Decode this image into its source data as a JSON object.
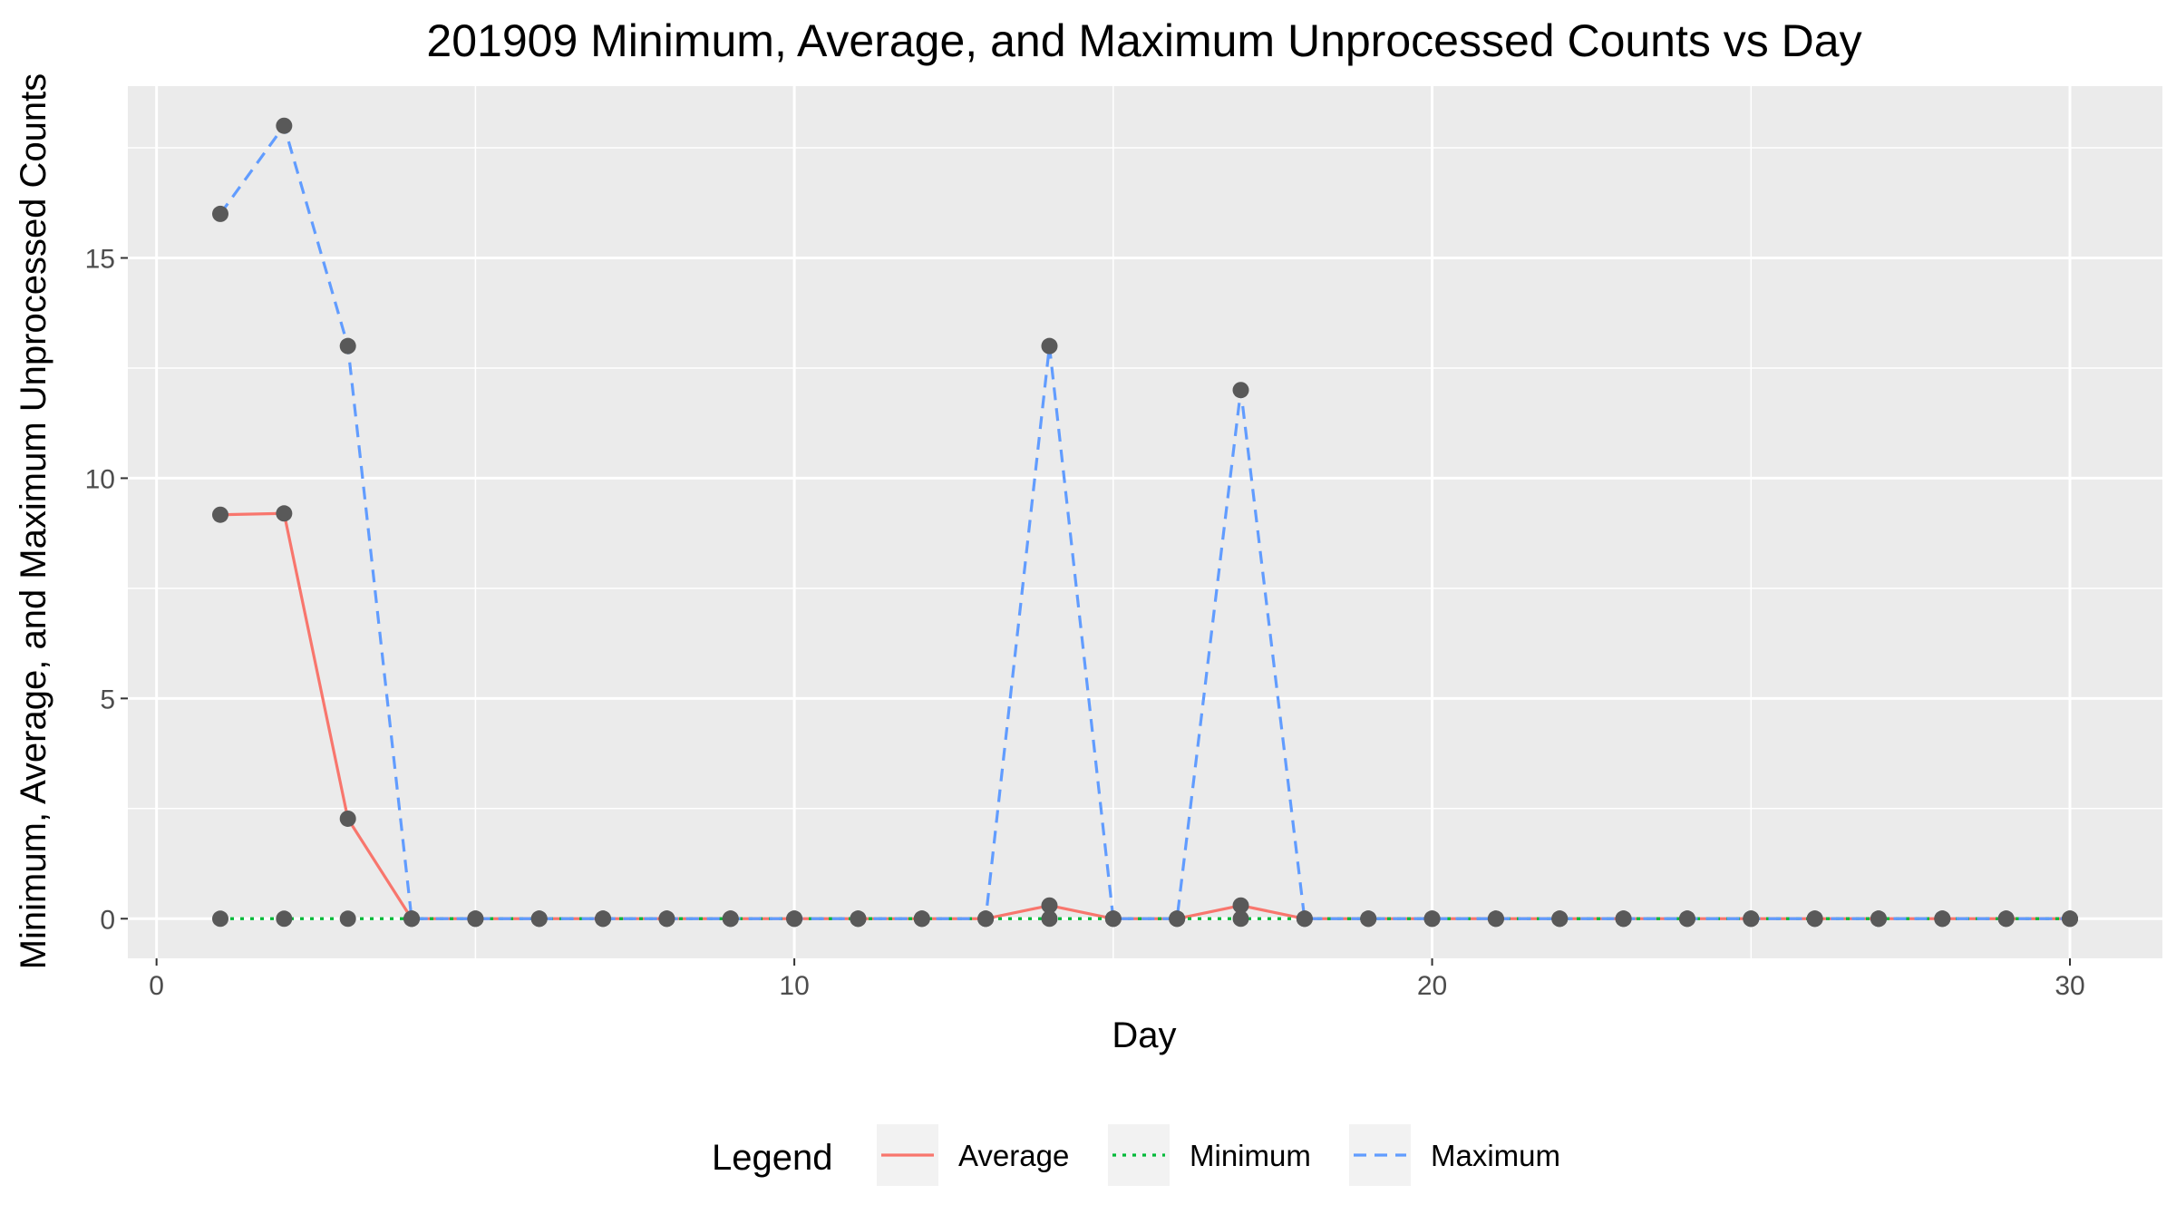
{
  "chart_data": {
    "type": "line",
    "title": "201909 Minimum, Average, and Maximum Unprocessed Counts vs Day",
    "xlabel": "Day",
    "ylabel": "Minimum, Average, and Maximum Unprocessed Counts",
    "xlim": [
      -0.45,
      31.45
    ],
    "ylim": [
      -0.9,
      18.9
    ],
    "x_ticks": [
      0,
      10,
      20,
      30
    ],
    "y_ticks": [
      0,
      5,
      10,
      15
    ],
    "grid": true,
    "legend_position": "bottom",
    "legend_title": "Legend",
    "x": [
      1,
      2,
      3,
      4,
      5,
      6,
      7,
      8,
      9,
      10,
      11,
      12,
      13,
      14,
      15,
      16,
      17,
      18,
      19,
      20,
      21,
      22,
      23,
      24,
      25,
      26,
      27,
      28,
      29,
      30
    ],
    "series": [
      {
        "name": "Average",
        "color": "#F8766D",
        "linetype": "solid",
        "values": [
          9.17,
          9.2,
          2.27,
          0,
          0,
          0,
          0,
          0,
          0,
          0,
          0,
          0,
          0,
          0.3,
          0,
          0,
          0.3,
          0,
          0,
          0,
          0,
          0,
          0,
          0,
          0,
          0,
          0,
          0,
          0,
          0
        ]
      },
      {
        "name": "Minimum",
        "color": "#00BA38",
        "linetype": "dotted",
        "values": [
          0,
          0,
          0,
          0,
          0,
          0,
          0,
          0,
          0,
          0,
          0,
          0,
          0,
          0,
          0,
          0,
          0,
          0,
          0,
          0,
          0,
          0,
          0,
          0,
          0,
          0,
          0,
          0,
          0,
          0
        ]
      },
      {
        "name": "Maximum",
        "color": "#619CFF",
        "linetype": "dashed",
        "values": [
          16,
          18,
          13,
          0,
          0,
          0,
          0,
          0,
          0,
          0,
          0,
          0,
          0,
          13,
          0,
          0,
          12,
          0,
          0,
          0,
          0,
          0,
          0,
          0,
          0,
          0,
          0,
          0,
          0,
          0
        ]
      }
    ],
    "point_color": "#595959",
    "panel_background": "#EBEBEB",
    "grid_color": "#FFFFFF"
  }
}
